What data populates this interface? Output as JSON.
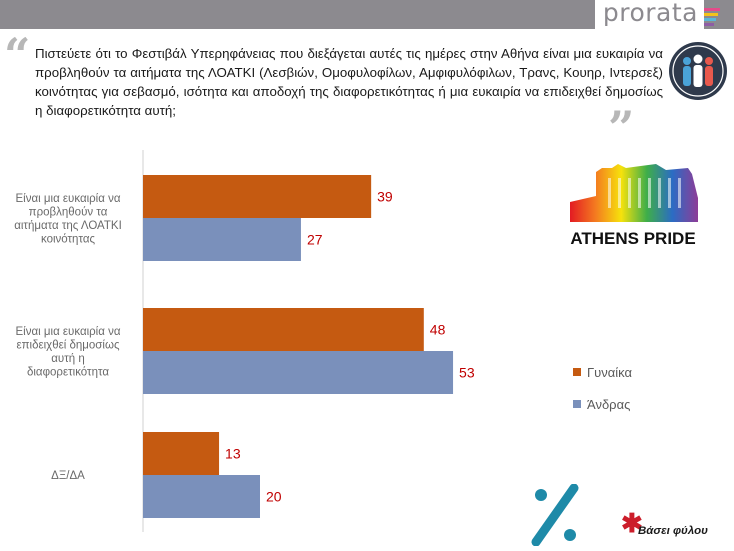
{
  "header": {
    "brand": "prorata",
    "brand_bar_colors": [
      "#e54b8a",
      "#f4c21b",
      "#5ab8d9",
      "#8e5da5"
    ]
  },
  "question": "Πιστεύετε ότι το Φεστιβάλ Υπερηφάνειας που διεξάγεται αυτές τις ημέρες στην Αθήνα είναι μια ευκαιρία να προβληθούν τα αιτήματα της ΛΟΑΤΚΙ (Λεσβιών, Ομοφυλοφίλων, Αμφιφυλόφιλων, Τρανς, Κουηρ, Ιντερσεξ) κοινότητας για σεβασμό, ισότητα και αποδοχή της διαφορετικότητας ή μια ευκαιρία να επιδειχθεί δημοσίως η διαφορετικότητα αυτή;",
  "logo": {
    "text": "ATHENS PRIDE"
  },
  "legend": [
    {
      "label": "Γυναίκα",
      "color": "#c55a11"
    },
    {
      "label": "Άνδρας",
      "color": "#7a90bb"
    }
  ],
  "footnote": "Βάσει φύλου",
  "chart_data": {
    "type": "bar",
    "orientation": "horizontal",
    "categories": [
      "Είναι μια ευκαιρία να προβληθούν τα αιτήματα της ΛΟΑΤΚΙ κοινότητας",
      "Είναι μια ευκαιρία να επιδειχθεί δημοσίως αυτή η διαφορετικότητα",
      "ΔΞ/ΔΑ"
    ],
    "series": [
      {
        "name": "Γυναίκα",
        "values": [
          39,
          48,
          13
        ],
        "color": "#c55a11"
      },
      {
        "name": "Άνδρας",
        "values": [
          27,
          53,
          20
        ],
        "color": "#7a90bb"
      }
    ],
    "xlim": [
      0,
      60
    ],
    "label_color": "#c00000"
  }
}
